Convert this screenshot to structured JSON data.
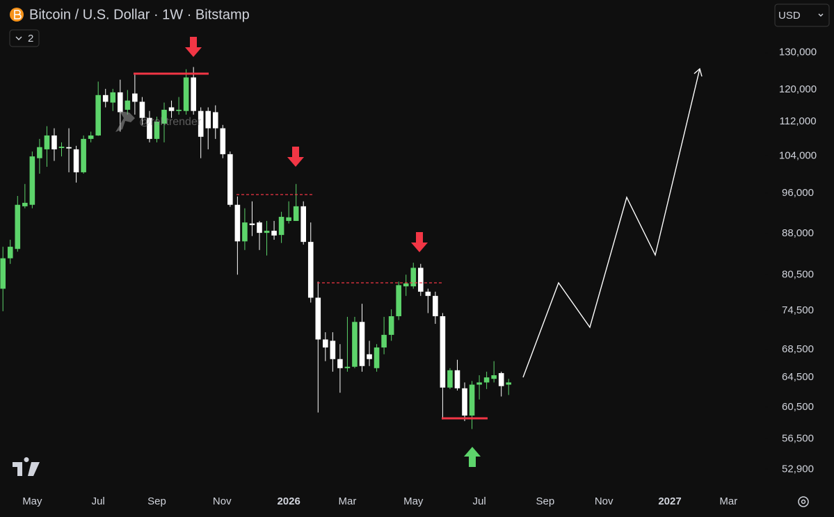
{
  "chart_data": {
    "type": "candlestick",
    "title": "Bitcoin / U.S. Dollar · 1W · Bitstamp",
    "currency": "USD",
    "collapsed_indicators": 2,
    "watermark": "@rektrender",
    "log_scale": true,
    "up_color": "#5dd46b",
    "down_color": "#ffffff",
    "xlim": [
      -0.4,
      104
    ],
    "xticks": [
      {
        "value": 4,
        "label": "May"
      },
      {
        "value": 13,
        "label": "Jul"
      },
      {
        "value": 21,
        "label": "Sep"
      },
      {
        "value": 29.9,
        "label": "Nov"
      },
      {
        "value": 39,
        "label": "2026"
      },
      {
        "value": 47,
        "label": "Mar"
      },
      {
        "value": 56,
        "label": "May"
      },
      {
        "value": 65,
        "label": "Jul"
      },
      {
        "value": 74,
        "label": "Sep"
      },
      {
        "value": 82,
        "label": "Nov"
      },
      {
        "value": 91,
        "label": "2027"
      },
      {
        "value": 99,
        "label": "Mar"
      }
    ],
    "ylim": [
      50600,
      145600
    ],
    "yticks": [
      {
        "value": 130000,
        "label": "130,000"
      },
      {
        "value": 120000,
        "label": "120,000"
      },
      {
        "value": 112000,
        "label": "112,000"
      },
      {
        "value": 104000,
        "label": "104,000"
      },
      {
        "value": 96000,
        "label": "96,000"
      },
      {
        "value": 88000,
        "label": "88,000"
      },
      {
        "value": 80500,
        "label": "80,500"
      },
      {
        "value": 74500,
        "label": "74,500"
      },
      {
        "value": 68500,
        "label": "68,500"
      },
      {
        "value": 64500,
        "label": "64,500"
      },
      {
        "value": 60500,
        "label": "60,500"
      },
      {
        "value": 56500,
        "label": "56,500"
      },
      {
        "value": 52900,
        "label": "52,900"
      }
    ],
    "x": [
      0,
      1,
      2,
      3,
      4,
      5,
      6,
      7,
      8,
      9,
      10,
      11,
      12,
      13,
      14,
      15,
      16,
      17,
      18,
      19,
      20,
      21,
      22,
      23,
      24,
      25,
      26,
      27,
      28,
      29,
      30,
      31,
      32,
      33,
      34,
      35,
      36,
      37,
      38,
      39,
      40,
      41,
      42,
      43,
      44,
      45,
      46,
      47,
      48,
      49,
      50,
      51,
      52,
      53,
      54,
      55,
      56,
      57,
      58,
      59,
      60,
      61,
      62,
      63,
      64,
      65,
      66,
      67,
      68,
      69
    ],
    "open": [
      78100,
      83400,
      85100,
      93300,
      93600,
      103500,
      105500,
      108700,
      105800,
      106000,
      105500,
      100400,
      107900,
      108700,
      118600,
      116700,
      119300,
      114900,
      119000,
      116900,
      112900,
      107900,
      111500,
      115500,
      114600,
      114600,
      123200,
      114600,
      114600,
      114300,
      110400,
      104400,
      93600,
      86500,
      89900,
      90100,
      88100,
      88500,
      87700,
      90400,
      90400,
      93300,
      86400,
      76600,
      70000,
      69800,
      67100,
      65800,
      66000,
      72700,
      67800,
      65800,
      68800,
      70700,
      73600,
      78500,
      78500,
      81700,
      77600,
      76900,
      73600,
      63100,
      65500,
      63000,
      59400,
      63500,
      63800,
      64300,
      65100,
      63500
    ],
    "high": [
      85500,
      86800,
      95400,
      97900,
      105000,
      107900,
      110900,
      110400,
      107100,
      110400,
      106300,
      108700,
      109600,
      122100,
      120200,
      120200,
      122600,
      119900,
      123900,
      118100,
      114600,
      113200,
      116700,
      117200,
      118100,
      125400,
      126000,
      115500,
      115500,
      116000,
      111200,
      105000,
      95300,
      92900,
      94300,
      90400,
      90400,
      90400,
      92200,
      94300,
      97900,
      94300,
      90100,
      79300,
      71100,
      71100,
      69300,
      73500,
      73500,
      75600,
      69800,
      69300,
      73500,
      74700,
      79300,
      80500,
      82600,
      82400,
      78100,
      77600,
      74100,
      65800,
      67000,
      63800,
      64000,
      64800,
      65300,
      66800,
      65300,
      64300
    ],
    "low": [
      74400,
      82400,
      84600,
      92900,
      92900,
      100100,
      101600,
      102900,
      103900,
      100400,
      98200,
      100100,
      107100,
      108600,
      115500,
      114600,
      109600,
      113700,
      113700,
      111200,
      107100,
      107100,
      107100,
      112900,
      113700,
      113700,
      113700,
      103500,
      105500,
      107900,
      103500,
      93200,
      80500,
      84900,
      87500,
      84900,
      83900,
      86800,
      86200,
      89900,
      90400,
      85900,
      75800,
      59800,
      66800,
      65300,
      62400,
      65300,
      65800,
      65300,
      66100,
      65300,
      67800,
      69800,
      73000,
      76900,
      78100,
      76900,
      74100,
      72400,
      58900,
      62900,
      62700,
      58700,
      57700,
      61500,
      62900,
      63800,
      61900,
      62100
    ],
    "close": [
      83400,
      85500,
      93600,
      94000,
      103900,
      106000,
      108700,
      105500,
      106100,
      105700,
      100400,
      107900,
      108700,
      118600,
      116900,
      119300,
      114300,
      117200,
      116900,
      112900,
      107900,
      112000,
      114900,
      114600,
      114900,
      123200,
      114600,
      108400,
      110400,
      110400,
      104400,
      93600,
      86500,
      90100,
      89600,
      88100,
      88500,
      87600,
      91200,
      91100,
      93300,
      86400,
      76600,
      70000,
      68800,
      67100,
      65800,
      66000,
      72700,
      66100,
      67100,
      68800,
      70700,
      73600,
      78700,
      79000,
      81700,
      77600,
      76900,
      73600,
      63100,
      65500,
      63000,
      59400,
      63500,
      63800,
      64500,
      64800,
      63300,
      63800
    ]
  }
}
